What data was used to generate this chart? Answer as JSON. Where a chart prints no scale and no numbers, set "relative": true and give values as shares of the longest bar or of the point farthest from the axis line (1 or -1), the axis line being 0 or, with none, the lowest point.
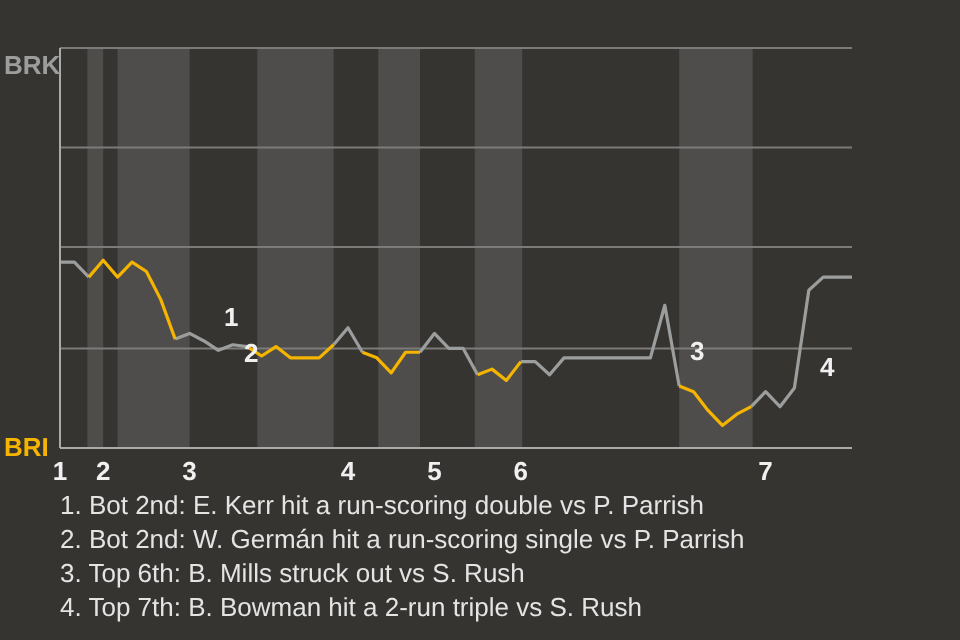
{
  "chart_data": {
    "type": "line",
    "relative": true,
    "categories": [
      "1",
      null,
      null,
      "2",
      null,
      null,
      null,
      null,
      null,
      "3",
      null,
      null,
      null,
      null,
      null,
      null,
      null,
      null,
      null,
      null,
      "4",
      null,
      null,
      null,
      null,
      null,
      "5",
      null,
      null,
      null,
      null,
      null,
      "6",
      null,
      null,
      null,
      null,
      null,
      null,
      null,
      null,
      null,
      null,
      null,
      null,
      null,
      null,
      null,
      null,
      "7",
      null,
      null,
      null,
      null,
      null,
      null
    ],
    "series": [
      {
        "color": "#9c9e9e",
        "values": [
          0.99,
          0.99,
          0.91,
          null,
          null,
          null,
          null,
          null,
          0.58,
          0.61,
          0.57,
          0.52,
          0.55,
          0.54,
          null,
          null,
          null,
          null,
          null,
          0.55,
          0.64,
          0.51,
          null,
          null,
          null,
          0.51,
          0.61,
          0.53,
          0.53,
          0.39,
          null,
          null,
          0.46,
          0.46,
          0.39,
          0.48,
          0.48,
          0.48,
          0.48,
          0.48,
          0.48,
          0.48,
          0.76,
          0.33,
          null,
          null,
          null,
          null,
          0.22,
          0.3,
          0.22,
          0.32,
          0.84,
          0.91,
          0.91,
          0.91
        ]
      },
      {
        "color": "#f5b400",
        "values": [
          null,
          null,
          0.91,
          1,
          0.91,
          0.99,
          0.94,
          0.79,
          0.58,
          null,
          null,
          null,
          null,
          0.54,
          0.49,
          0.54,
          0.48,
          0.48,
          0.48,
          0.55,
          null,
          0.51,
          0.48,
          0.4,
          0.51,
          0.51,
          null,
          null,
          null,
          0.39,
          0.42,
          0.36,
          0.46,
          null,
          null,
          null,
          null,
          null,
          null,
          null,
          null,
          null,
          null,
          0.33,
          0.3,
          0.2,
          0.12,
          0.18,
          0.22,
          null,
          null,
          null,
          null,
          null,
          null,
          null
        ]
      }
    ],
    "marker": "none",
    "line_style": "solid",
    "ref_lines": [
      {
        "axis": "y",
        "value": 0.53,
        "color": "#7c7b79"
      },
      {
        "axis": "y",
        "value": 1.07,
        "color": "#7c7b79"
      },
      {
        "axis": "y",
        "value": 1.6,
        "color": "#7c7b79"
      },
      {
        "axis": "y",
        "value": 2.13,
        "color": "#7c7b79"
      }
    ],
    "annotations": [
      "BRK",
      "BRI",
      "1",
      "2",
      "3",
      "4",
      "1. Bot 2nd: E. Kerr hit a run-scoring double vs P. Parrish",
      "2. Bot 2nd: W. Germán hit a run-scoring single vs P. Parrish",
      "3. Top 6th: B. Mills struck out vs S. Rush",
      "4. Top 7th: B. Bowman hit a 2-run triple vs S. Rush"
    ]
  }
}
